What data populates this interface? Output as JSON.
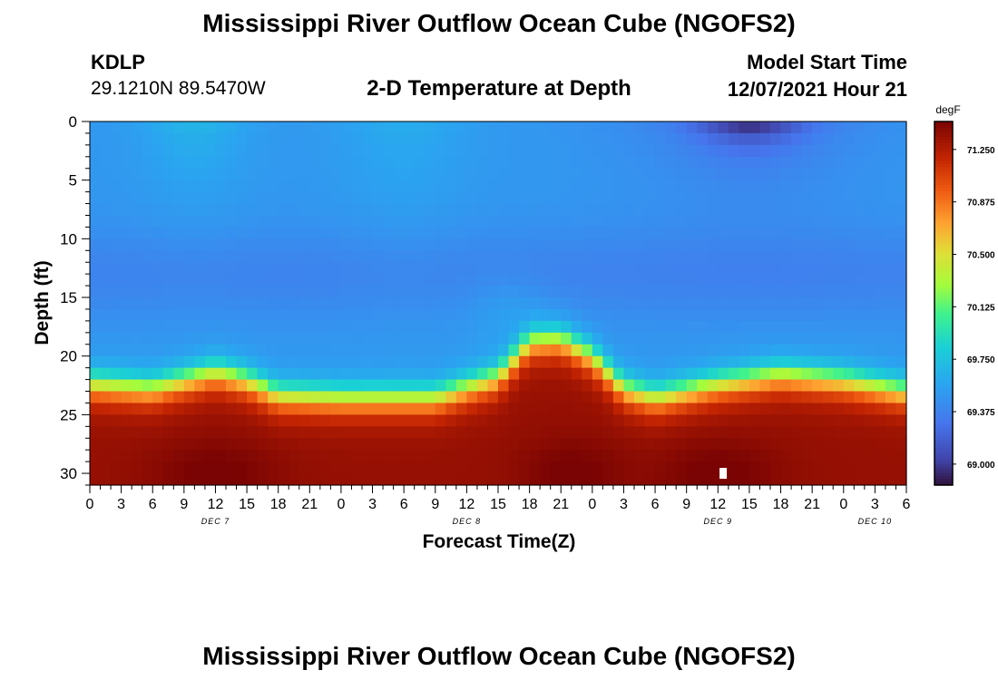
{
  "header": {
    "title": "Mississippi River Outflow Ocean Cube (NGOFS2)",
    "station": "KDLP",
    "coords": "29.1210N  89.5470W",
    "subtitle": "2-D Temperature at Depth",
    "model_start_label": "Model Start Time",
    "model_start_value": "12/07/2021 Hour 21"
  },
  "footer": {
    "title": "Mississippi River Outflow Ocean Cube (NGOFS2)"
  },
  "chart_data": {
    "type": "heatmap",
    "xlabel": "Forecast Time(Z)",
    "ylabel": "Depth (ft)",
    "x_ticks": [
      "0",
      "3",
      "6",
      "9",
      "12",
      "15",
      "18",
      "21",
      "0",
      "3",
      "6",
      "9",
      "12",
      "15",
      "18",
      "21",
      "0",
      "3",
      "6",
      "9",
      "12",
      "15",
      "18",
      "21",
      "0",
      "3",
      "6"
    ],
    "date_labels": [
      {
        "label": "DEC 7",
        "after_tick": 12
      },
      {
        "label": "DEC 8",
        "after_tick": 12
      },
      {
        "label": "DEC 9",
        "after_tick": 12
      },
      {
        "label": "DEC 10",
        "after_tick": 3
      }
    ],
    "y_ticks": [
      0,
      5,
      10,
      15,
      20,
      25,
      30
    ],
    "ylim": [
      0,
      31
    ],
    "xlim_hours": [
      0,
      78
    ],
    "colorbar": {
      "unit": "degF",
      "ticks": [
        "71.250",
        "70.875",
        "70.500",
        "70.125",
        "69.750",
        "69.375",
        "69.000"
      ],
      "range": [
        68.85,
        71.45
      ]
    },
    "thermocline_depth_ft": {
      "hours": [
        0,
        6,
        12,
        15,
        18,
        24,
        33,
        39,
        42,
        45,
        48,
        51,
        54,
        60,
        66,
        72,
        78
      ],
      "values": [
        21.8,
        22.2,
        20.8,
        21.5,
        22.8,
        23.0,
        23.0,
        21.2,
        18.2,
        18.0,
        19.5,
        22.2,
        23.0,
        21.8,
        21.0,
        21.5,
        22.5
      ]
    },
    "surface_cold_core": {
      "center_hour": 63,
      "depth_ft": 0,
      "min_degF": 68.95
    },
    "surface_warm_patch": {
      "center_hour": 10,
      "depth_ft": 0,
      "max_degF": 70.05
    },
    "marker": {
      "hour": 60.5,
      "depth_ft": 30
    }
  }
}
